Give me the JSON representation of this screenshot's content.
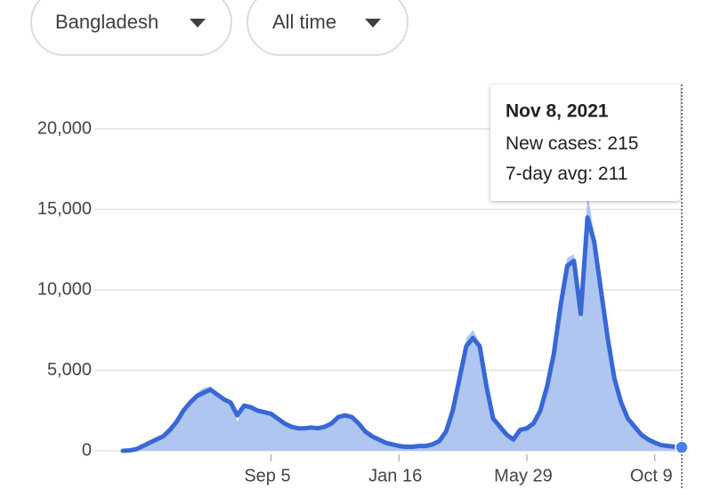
{
  "filters": [
    "Bangladesh",
    "All time"
  ],
  "chart_data": {
    "type": "line",
    "categories": [
      null,
      null,
      null,
      null,
      null,
      null,
      null,
      null,
      null,
      null,
      null,
      null,
      null,
      null,
      null,
      null,
      null,
      null,
      null,
      null,
      null,
      null,
      "Sep 5",
      null,
      null,
      null,
      null,
      null,
      null,
      null,
      null,
      null,
      null,
      null,
      null,
      null,
      null,
      null,
      null,
      null,
      null,
      "Jan 16",
      null,
      null,
      null,
      null,
      null,
      null,
      null,
      null,
      null,
      null,
      null,
      null,
      null,
      null,
      null,
      null,
      null,
      null,
      "May 29",
      null,
      null,
      null,
      null,
      null,
      null,
      null,
      null,
      null,
      null,
      null,
      null,
      null,
      null,
      null,
      null,
      null,
      null,
      "Oct 9",
      null,
      null,
      null,
      null
    ],
    "series": [
      {
        "kind": "area",
        "color": "#aec6f0",
        "values": [
          0,
          30,
          120,
          350,
          550,
          750,
          1000,
          1400,
          2000,
          2700,
          3200,
          3600,
          3900,
          4000,
          3600,
          3300,
          3100,
          1800,
          2900,
          2800,
          2600,
          2500,
          2400,
          2100,
          1800,
          1600,
          1450,
          1450,
          1500,
          1450,
          1550,
          1800,
          2200,
          2300,
          2150,
          1750,
          1250,
          950,
          750,
          550,
          450,
          320,
          270,
          260,
          310,
          320,
          420,
          650,
          1300,
          2700,
          4800,
          7000,
          7500,
          6700,
          4200,
          2100,
          1600,
          1050,
          650,
          1350,
          1450,
          1800,
          2700,
          4300,
          6500,
          9800,
          12000,
          12200,
          8000,
          16000,
          13500,
          10500,
          7300,
          4700,
          3100,
          2100,
          1550,
          1050,
          750,
          520,
          370,
          310,
          260,
          215
        ]
      },
      {
        "kind": "line",
        "color": "#3867d6",
        "values": [
          0,
          20,
          100,
          300,
          500,
          700,
          900,
          1300,
          1800,
          2500,
          3000,
          3400,
          3600,
          3800,
          3500,
          3200,
          3000,
          2200,
          2800,
          2700,
          2500,
          2400,
          2300,
          2000,
          1700,
          1500,
          1400,
          1400,
          1450,
          1400,
          1500,
          1700,
          2100,
          2200,
          2100,
          1700,
          1200,
          900,
          700,
          500,
          400,
          300,
          250,
          250,
          300,
          300,
          400,
          600,
          1200,
          2500,
          4500,
          6500,
          7000,
          6500,
          4000,
          2000,
          1500,
          1000,
          700,
          1300,
          1400,
          1700,
          2500,
          4000,
          6000,
          9000,
          11500,
          11800,
          8500,
          14500,
          13000,
          10000,
          7000,
          4500,
          3000,
          2000,
          1500,
          1000,
          700,
          500,
          350,
          300,
          250,
          211
        ]
      }
    ],
    "ylim": [
      0,
      20000
    ],
    "yticks": [
      0,
      {
        "value": 5000,
        "label": "5,000"
      },
      {
        "value": 10000,
        "label": "10,000"
      },
      {
        "value": 15000,
        "label": "15,000"
      },
      {
        "value": 20000,
        "label": "20,000"
      }
    ],
    "grid": true,
    "tooltip": {
      "date": "Nov 8, 2021",
      "rows": [
        {
          "label": "New cases:",
          "value": 215
        },
        {
          "label": "7-day avg:",
          "value": 211
        }
      ]
    }
  }
}
